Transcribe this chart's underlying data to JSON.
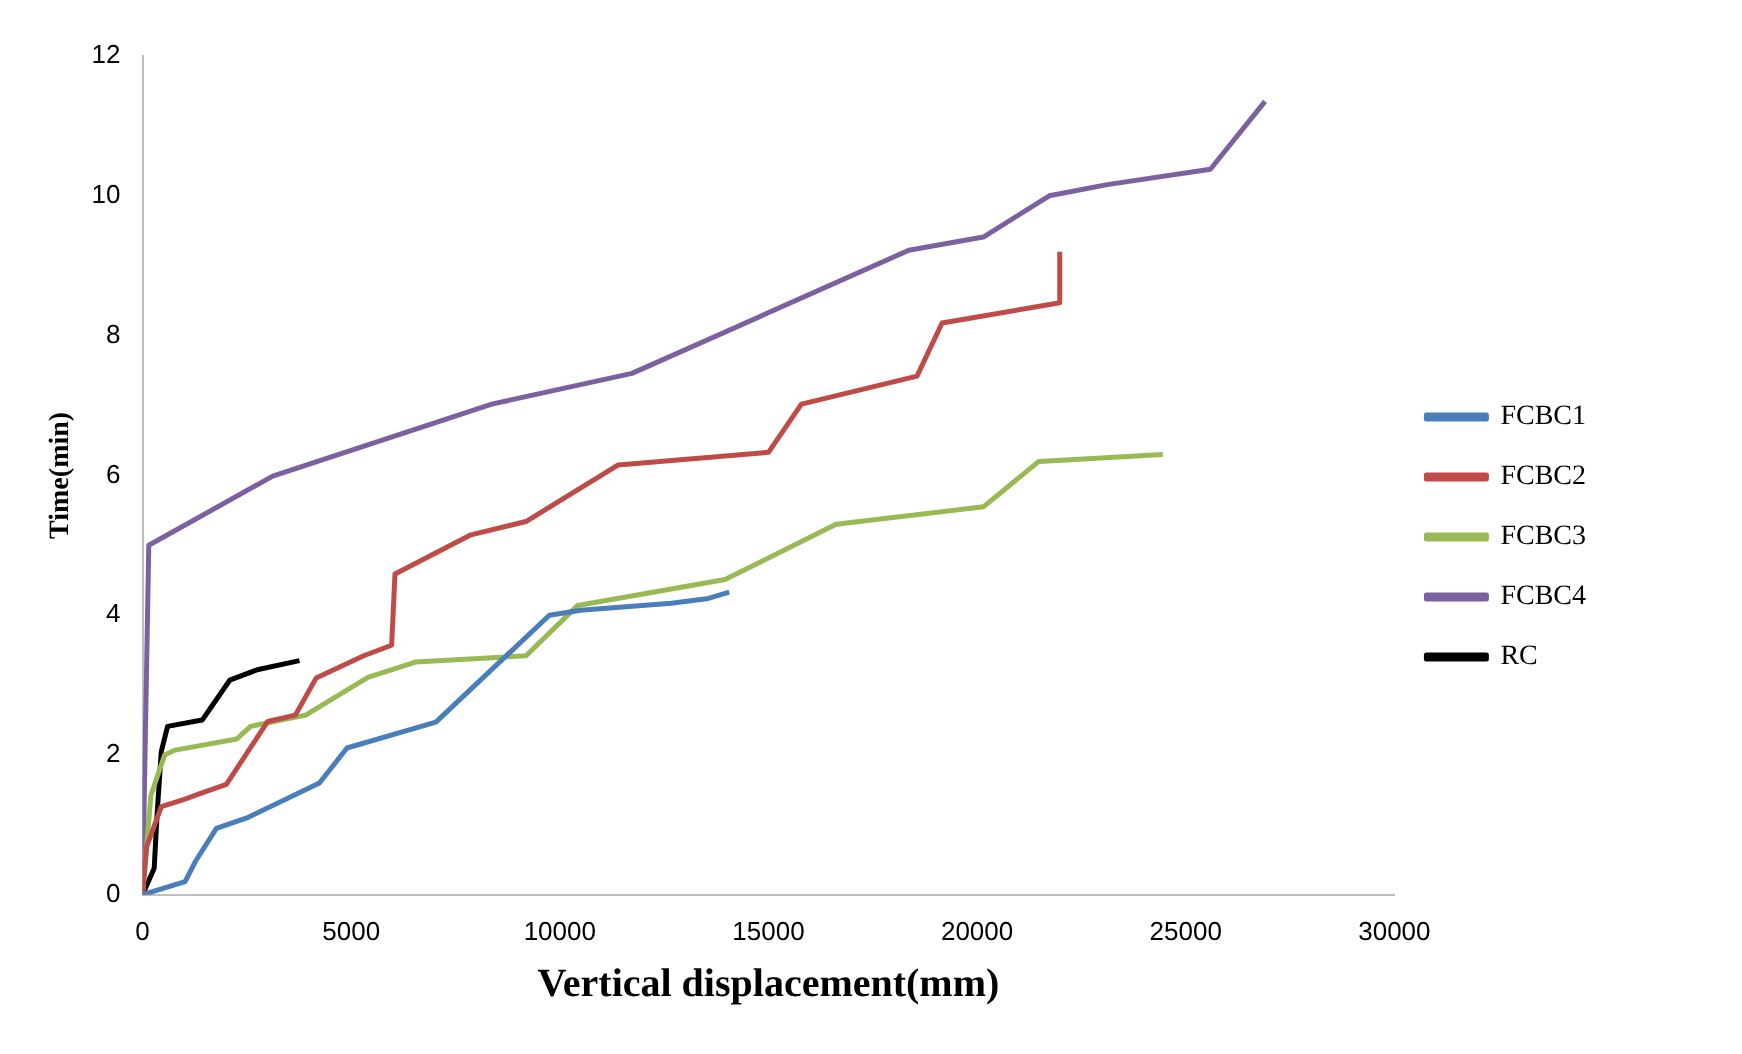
{
  "chart_data": {
    "type": "line",
    "xlabel": "Vertical displacement(mm)",
    "ylabel": "Time(min)",
    "xlim": [
      0,
      30000
    ],
    "xticks": [
      0,
      5000,
      10000,
      15000,
      20000,
      25000,
      30000
    ],
    "ylim": [
      0,
      12
    ],
    "yticks": [
      0,
      2,
      4,
      6,
      8,
      10,
      12
    ],
    "grid": false,
    "legend": "right",
    "marker": "none",
    "line_style": "solid",
    "series": [
      {
        "name": "FCBC1",
        "color": "#4a7ebb",
        "x": [
          0,
          1020,
          1270,
          1770,
          2500,
          4240,
          4900,
          7030,
          9750,
          10500,
          12670,
          13560,
          14060
        ],
        "values": [
          0,
          0.19,
          0.48,
          0.95,
          1.1,
          1.6,
          2.1,
          2.47,
          4.0,
          4.07,
          4.17,
          4.24,
          4.33
        ]
      },
      {
        "name": "FCBC2",
        "color": "#be4b48",
        "x": [
          0,
          100,
          450,
          1020,
          1340,
          2010,
          3000,
          3660,
          4160,
          5300,
          5970,
          6050,
          7870,
          9190,
          11400,
          15000,
          15790,
          18560,
          19160,
          21980,
          21980
        ],
        "values": [
          0,
          0.69,
          1.26,
          1.37,
          1.44,
          1.58,
          2.48,
          2.57,
          3.1,
          3.42,
          3.57,
          4.59,
          5.15,
          5.34,
          6.15,
          6.33,
          7.02,
          7.42,
          8.18,
          8.47,
          9.2
        ]
      },
      {
        "name": "FCBC3",
        "color": "#98b954",
        "x": [
          0,
          200,
          530,
          780,
          2260,
          2590,
          3910,
          5400,
          6540,
          9190,
          10430,
          13960,
          16620,
          20150,
          21480,
          24450
        ],
        "values": [
          0,
          1.42,
          2.0,
          2.07,
          2.23,
          2.41,
          2.57,
          3.11,
          3.33,
          3.42,
          4.14,
          4.51,
          5.3,
          5.55,
          6.2,
          6.3
        ]
      },
      {
        "name": "FCBC4",
        "color": "#7d60a0",
        "x": [
          0,
          150,
          3120,
          8370,
          11730,
          18360,
          20150,
          21730,
          23120,
          25590,
          26900
        ],
        "values": [
          0,
          5.0,
          5.99,
          7.02,
          7.46,
          9.22,
          9.41,
          10.0,
          10.16,
          10.38,
          11.35
        ]
      },
      {
        "name": "RC",
        "color": "#000000",
        "x": [
          0,
          280,
          350,
          450,
          600,
          1430,
          2090,
          2750,
          3760
        ],
        "values": [
          0,
          0.38,
          1.16,
          2.05,
          2.41,
          2.5,
          3.07,
          3.22,
          3.35
        ]
      }
    ]
  }
}
